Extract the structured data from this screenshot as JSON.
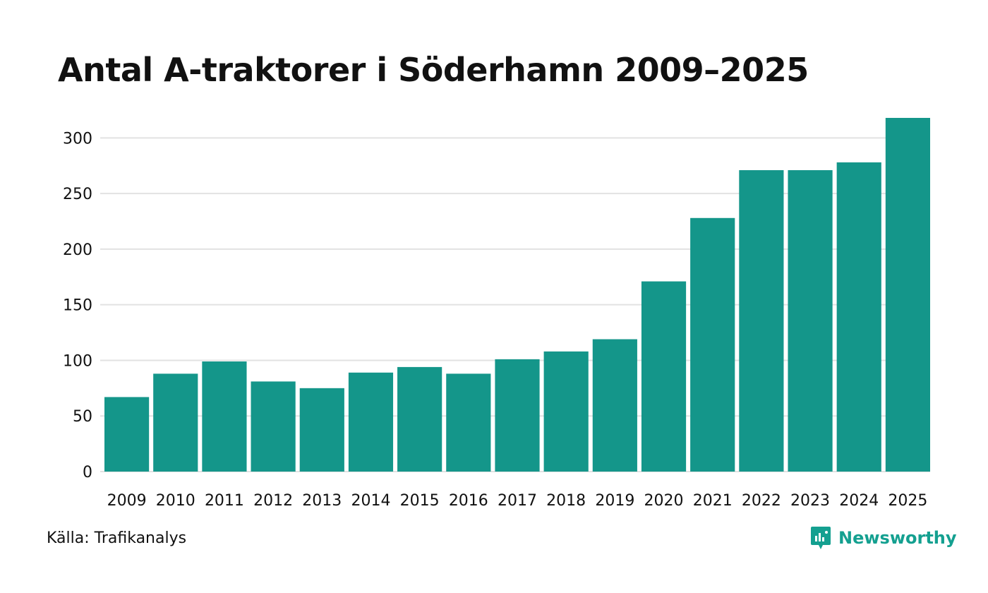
{
  "chart_data": {
    "type": "bar",
    "title": "Antal A-traktorer i Söderhamn 2009–2025",
    "categories": [
      "2009",
      "2010",
      "2011",
      "2012",
      "2013",
      "2014",
      "2015",
      "2016",
      "2017",
      "2018",
      "2019",
      "2020",
      "2021",
      "2022",
      "2023",
      "2024",
      "2025"
    ],
    "values": [
      67,
      88,
      99,
      81,
      75,
      89,
      94,
      88,
      101,
      108,
      119,
      171,
      228,
      271,
      271,
      278,
      318
    ],
    "yticks": [
      0,
      50,
      100,
      150,
      200,
      250,
      300
    ],
    "ylim": [
      0,
      318
    ],
    "xlabel": "",
    "ylabel": "",
    "bar_color": "#14968a",
    "grid": true
  },
  "footer": {
    "source": "Källa: Trafikanalys",
    "brand": "Newsworthy",
    "brand_color": "#14a090",
    "brand_icon": "newsworthy-logo-icon"
  }
}
